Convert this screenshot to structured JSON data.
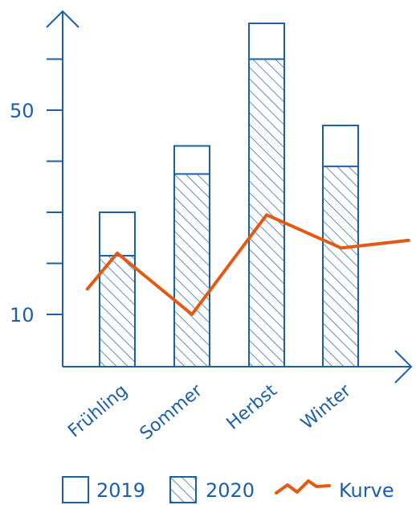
{
  "chart_data": {
    "type": "bar",
    "categories": [
      "Frühling",
      "Sommer",
      "Herbst",
      "Winter"
    ],
    "series": [
      {
        "name": "2019",
        "values": [
          30,
          43,
          67,
          47
        ],
        "style": "open"
      },
      {
        "name": "2020",
        "values": [
          21.5,
          37.5,
          60,
          39
        ]
      }
    ],
    "line": {
      "name": "Kurve",
      "x": [
        -0.4,
        0,
        1,
        2,
        3,
        3.9
      ],
      "y": [
        15,
        22,
        10,
        29.5,
        23,
        24.5
      ]
    },
    "ylim": [
      0,
      72
    ],
    "yticks": [
      10,
      50
    ],
    "title": "",
    "xlabel": "",
    "ylabel": "",
    "legend_position": "bottom",
    "colors": {
      "axis": "#1d5fa6",
      "bar": "#1d5fa6",
      "line": "#e35a14"
    }
  }
}
